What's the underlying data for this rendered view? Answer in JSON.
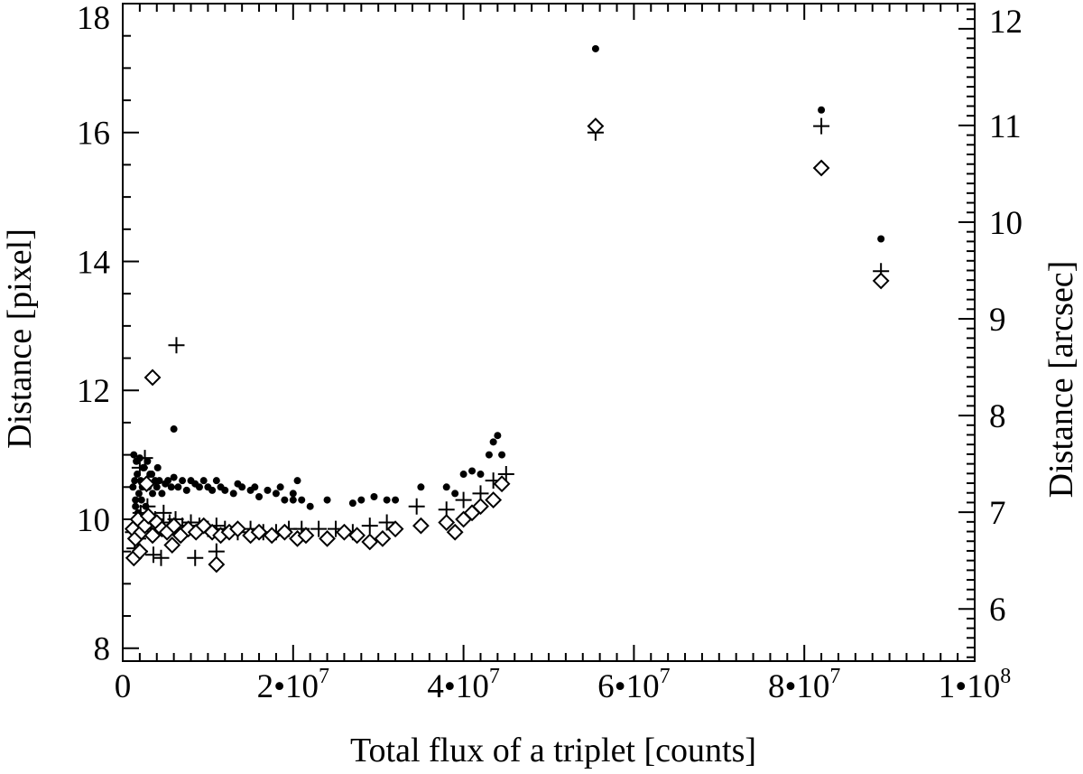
{
  "chart_data": {
    "type": "scatter",
    "xlabel": "Total flux of a triplet [counts]",
    "ylabel": "Distance [pixel]",
    "ylabel_right": "Distance [arcsec]",
    "xlim": [
      0,
      100000000
    ],
    "ylim": [
      7.8,
      18
    ],
    "ylim_right": [
      5.46,
      12.26
    ],
    "x_ticks": [
      {
        "value": 0,
        "base": "0",
        "exp": ""
      },
      {
        "value": 20000000,
        "base": "2•10",
        "exp": "7"
      },
      {
        "value": 40000000,
        "base": "4•10",
        "exp": "7"
      },
      {
        "value": 60000000,
        "base": "6•10",
        "exp": "7"
      },
      {
        "value": 80000000,
        "base": "8•10",
        "exp": "7"
      },
      {
        "value": 100000000,
        "base": "1•10",
        "exp": "8"
      }
    ],
    "y_ticks": [
      8,
      10,
      12,
      14,
      16,
      18
    ],
    "y_ticks_right": [
      6,
      7,
      8,
      9,
      10,
      11,
      12
    ],
    "grid": false,
    "series": [
      {
        "marker": "dot",
        "x": [
          1200000.0,
          1400000.0,
          1500000.0,
          1700000.0,
          1900000.0,
          2100000.0,
          2300000.0,
          2500000.0,
          2800000.0,
          3000000.0,
          3200000.0,
          3500000.0,
          3800000.0,
          4000000.0,
          4300000.0,
          4600000.0,
          5000000.0,
          5300000.0,
          5700000.0,
          6000000.0,
          6500000.0,
          7000000.0,
          7500000.0,
          8000000.0,
          8500000.0,
          9000000.0,
          9500000.0,
          10000000.0,
          10500000.0,
          11000000.0,
          11500000.0,
          12000000.0,
          13000000.0,
          13500000.0,
          14000000.0,
          15000000.0,
          15500000.0,
          16000000.0,
          17000000.0,
          18000000.0,
          18500000.0,
          19000000.0,
          20000000.0,
          20500000.0,
          21000000.0,
          22000000.0,
          1300000.0,
          1600000.0,
          2000000.0,
          2400000.0,
          2900000.0,
          3400000.0,
          4100000.0,
          1500000.0,
          1800000.0,
          2200000.0,
          2700000.0,
          6000000.0,
          20000000.0,
          24000000.0,
          27000000.0,
          28000000.0,
          29500000.0,
          31000000.0,
          32000000.0,
          35000000.0,
          38000000.0,
          39000000.0,
          40000000.0,
          41000000.0,
          42000000.0,
          43000000.0,
          44000000.0,
          44500000.0,
          43500000.0,
          55500000.0,
          82000000.0,
          89000000.0
        ],
        "y": [
          10.5,
          10.6,
          10.3,
          10.7,
          10.4,
          10.6,
          10.5,
          10.8,
          10.6,
          10.5,
          10.7,
          10.4,
          10.6,
          10.5,
          10.6,
          10.4,
          10.55,
          10.6,
          10.5,
          10.65,
          10.5,
          10.6,
          10.45,
          10.6,
          10.55,
          10.5,
          10.6,
          10.5,
          10.45,
          10.6,
          10.5,
          10.45,
          10.4,
          10.55,
          10.5,
          10.45,
          10.5,
          10.35,
          10.45,
          10.4,
          10.5,
          10.3,
          10.4,
          10.6,
          10.3,
          10.2,
          11.0,
          10.9,
          10.95,
          10.8,
          10.9,
          10.7,
          10.8,
          10.2,
          10.1,
          10.3,
          10.2,
          11.4,
          10.3,
          10.3,
          10.25,
          10.3,
          10.35,
          10.3,
          10.3,
          10.5,
          10.5,
          10.4,
          10.7,
          10.75,
          10.7,
          11.0,
          11.3,
          11.0,
          11.2,
          17.3,
          16.35,
          14.35
        ]
      },
      {
        "marker": "plus",
        "x": [
          1200000.0,
          1500000.0,
          1800000.0,
          2100000.0,
          2500000.0,
          2900000.0,
          3300000.0,
          3800000.0,
          4300000.0,
          4800000.0,
          5500000.0,
          6200000.0,
          7000000.0,
          8000000.0,
          9000000.0,
          10000000.0,
          11000000.0,
          12000000.0,
          13500000.0,
          15000000.0,
          16500000.0,
          18000000.0,
          19500000.0,
          21000000.0,
          23000000.0,
          25000000.0,
          27000000.0,
          29000000.0,
          31000000.0,
          34500000.0,
          38000000.0,
          40000000.0,
          42000000.0,
          43500000.0,
          45000000.0,
          1400000.0,
          2000000.0,
          3600000.0,
          4500000.0,
          6300000.0,
          8500000.0,
          11000000.0,
          2000000.0,
          2600000.0,
          55500000.0,
          82000000.0,
          89000000.0
        ],
        "y": [
          9.8,
          10.0,
          9.7,
          10.1,
          9.9,
          10.2,
          9.8,
          10.0,
          9.9,
          10.1,
          9.95,
          10.0,
          9.9,
          9.95,
          9.9,
          9.85,
          9.9,
          9.85,
          9.8,
          9.85,
          9.8,
          9.8,
          9.85,
          9.85,
          9.85,
          9.85,
          9.8,
          9.9,
          9.95,
          10.2,
          10.15,
          10.3,
          10.4,
          10.6,
          10.7,
          9.55,
          9.5,
          9.45,
          9.4,
          12.7,
          9.4,
          9.5,
          10.8,
          10.95,
          16.0,
          16.1,
          13.85
        ]
      },
      {
        "marker": "diamond",
        "x": [
          1200000.0,
          1500000.0,
          1800000.0,
          2200000.0,
          2600000.0,
          3000000.0,
          3500000.0,
          4000000.0,
          4600000.0,
          5200000.0,
          6000000.0,
          6800000.0,
          7700000.0,
          8600000.0,
          9500000.0,
          10500000.0,
          11500000.0,
          12500000.0,
          13500000.0,
          15000000.0,
          16000000.0,
          17500000.0,
          19000000.0,
          20500000.0,
          21500000.0,
          24000000.0,
          26000000.0,
          27500000.0,
          29000000.0,
          30500000.0,
          32000000.0,
          35000000.0,
          38000000.0,
          39000000.0,
          40000000.0,
          41000000.0,
          42000000.0,
          43500000.0,
          44500000.0,
          1300000.0,
          2000000.0,
          2800000.0,
          5800000.0,
          3500000.0,
          11000000.0,
          55500000.0,
          82000000.0,
          89000000.0
        ],
        "y": [
          9.85,
          9.7,
          10.0,
          9.8,
          9.9,
          10.05,
          9.75,
          9.95,
          9.85,
          9.8,
          9.9,
          9.75,
          9.85,
          9.8,
          9.9,
          9.8,
          9.75,
          9.8,
          9.85,
          9.75,
          9.8,
          9.75,
          9.8,
          9.7,
          9.75,
          9.7,
          9.8,
          9.75,
          9.65,
          9.7,
          9.85,
          9.9,
          9.95,
          9.8,
          10.0,
          10.1,
          10.2,
          10.3,
          10.55,
          9.4,
          9.5,
          10.55,
          9.6,
          12.2,
          9.3,
          16.1,
          15.45,
          13.7
        ]
      }
    ]
  }
}
